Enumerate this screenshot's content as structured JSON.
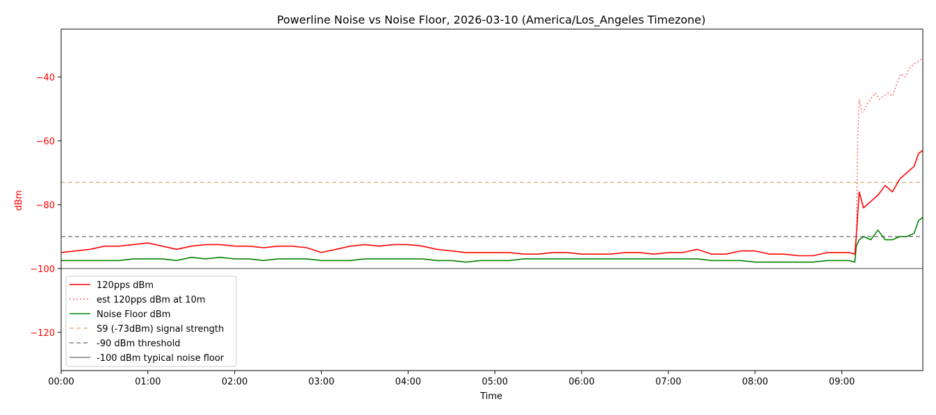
{
  "chart_data": {
    "type": "line",
    "title": "Powerline Noise vs Noise Floor, 2026-03-10 (America/Los_Angeles Timezone)",
    "xlabel": "Time",
    "ylabel": "dBm",
    "xlim": [
      "00:00",
      "09:56"
    ],
    "ylim": [
      -132,
      -25
    ],
    "x_ticks": [
      "00:00",
      "01:00",
      "02:00",
      "03:00",
      "04:00",
      "05:00",
      "06:00",
      "07:00",
      "08:00",
      "09:00"
    ],
    "y_ticks": [
      -40,
      -60,
      -80,
      -100,
      -120
    ],
    "y_tick_labels": [
      "−40",
      "−60",
      "−80",
      "−100",
      "−120"
    ],
    "grid": false,
    "legend_position": "lower-left",
    "ylabel_color": "#ff0000",
    "series": [
      {
        "name": "120pps dBm",
        "color": "#ff0000",
        "style": "solid",
        "x": [
          "00:00",
          "00:10",
          "00:20",
          "00:30",
          "00:40",
          "00:50",
          "01:00",
          "01:10",
          "01:20",
          "01:30",
          "01:40",
          "01:50",
          "02:00",
          "02:10",
          "02:20",
          "02:30",
          "02:40",
          "02:50",
          "03:00",
          "03:10",
          "03:20",
          "03:30",
          "03:40",
          "03:50",
          "04:00",
          "04:10",
          "04:20",
          "04:30",
          "04:40",
          "04:50",
          "05:00",
          "05:10",
          "05:20",
          "05:30",
          "05:40",
          "05:50",
          "06:00",
          "06:10",
          "06:20",
          "06:30",
          "06:40",
          "06:50",
          "07:00",
          "07:10",
          "07:20",
          "07:30",
          "07:40",
          "07:50",
          "08:00",
          "08:10",
          "08:20",
          "08:30",
          "08:40",
          "08:50",
          "09:00",
          "09:05",
          "09:09",
          "09:10",
          "09:12",
          "09:15",
          "09:20",
          "09:25",
          "09:30",
          "09:35",
          "09:40",
          "09:45",
          "09:50",
          "09:53",
          "09:56"
        ],
        "values": [
          -95,
          -94.5,
          -94,
          -93,
          -93,
          -92.5,
          -92,
          -93,
          -94,
          -93,
          -92.5,
          -92.5,
          -93,
          -93,
          -93.5,
          -93,
          -93,
          -93.5,
          -95,
          -94,
          -93,
          -92.5,
          -93,
          -92.5,
          -92.5,
          -93,
          -94,
          -94.5,
          -95,
          -95,
          -95,
          -95,
          -95.5,
          -95.5,
          -95,
          -95,
          -95.5,
          -95.5,
          -95.5,
          -95,
          -95,
          -95.5,
          -95,
          -95,
          -94,
          -95.5,
          -95.5,
          -94.5,
          -94.5,
          -95.5,
          -95.5,
          -96,
          -96,
          -95,
          -95,
          -95,
          -95.5,
          -90,
          -76,
          -81,
          -79,
          -77,
          -74,
          -76,
          -72,
          -70,
          -68,
          -64,
          -63
        ]
      },
      {
        "name": "est 120pps dBm at 10m",
        "color": "#ff6666",
        "style": "dotted",
        "x": [
          "09:00",
          "09:05",
          "09:09",
          "09:10",
          "09:11",
          "09:12",
          "09:14",
          "09:16",
          "09:18",
          "09:20",
          "09:23",
          "09:26",
          "09:29",
          "09:32",
          "09:35",
          "09:38",
          "09:41",
          "09:44",
          "09:47",
          "09:50",
          "09:53",
          "09:56"
        ],
        "values": [
          -95,
          -95,
          -95.5,
          -89,
          -60,
          -47,
          -51,
          -50,
          -48,
          -47,
          -45,
          -47,
          -46,
          -45,
          -46,
          -42,
          -39,
          -40,
          -37,
          -36,
          -35,
          -34
        ]
      },
      {
        "name": "Noise Floor dBm",
        "color": "#008000",
        "style": "solid",
        "x": [
          "00:00",
          "00:10",
          "00:20",
          "00:30",
          "00:40",
          "00:50",
          "01:00",
          "01:10",
          "01:20",
          "01:30",
          "01:40",
          "01:50",
          "02:00",
          "02:10",
          "02:20",
          "02:30",
          "02:40",
          "02:50",
          "03:00",
          "03:10",
          "03:20",
          "03:30",
          "03:40",
          "03:50",
          "04:00",
          "04:10",
          "04:20",
          "04:30",
          "04:40",
          "04:50",
          "05:00",
          "05:10",
          "05:20",
          "05:30",
          "05:40",
          "05:50",
          "06:00",
          "06:10",
          "06:20",
          "06:30",
          "06:40",
          "06:50",
          "07:00",
          "07:10",
          "07:20",
          "07:30",
          "07:40",
          "07:50",
          "08:00",
          "08:10",
          "08:20",
          "08:30",
          "08:40",
          "08:50",
          "09:00",
          "09:05",
          "09:09",
          "09:10",
          "09:12",
          "09:15",
          "09:20",
          "09:25",
          "09:30",
          "09:35",
          "09:40",
          "09:45",
          "09:50",
          "09:53",
          "09:56"
        ],
        "values": [
          -97.5,
          -97.5,
          -97.5,
          -97.5,
          -97.5,
          -97,
          -97,
          -97,
          -97.5,
          -96.5,
          -97,
          -96.5,
          -97,
          -97,
          -97.5,
          -97,
          -97,
          -97,
          -97.5,
          -97.5,
          -97.5,
          -97,
          -97,
          -97,
          -97,
          -97,
          -97.5,
          -97.5,
          -98,
          -97.5,
          -97.5,
          -97.5,
          -97,
          -97,
          -97,
          -97,
          -97,
          -97,
          -97,
          -97,
          -97,
          -97,
          -97,
          -97,
          -97,
          -97.5,
          -97.5,
          -97.5,
          -98,
          -98,
          -98,
          -98,
          -98,
          -97.5,
          -97.5,
          -97.5,
          -98,
          -93,
          -91,
          -90,
          -91,
          -88,
          -91,
          -91,
          -90,
          -90,
          -89,
          -85,
          -84
        ]
      },
      {
        "name": "S9 (-73dBm) signal strength",
        "color": "#deb887",
        "style": "dashed",
        "x": [
          "00:00",
          "09:56"
        ],
        "values": [
          -73,
          -73
        ]
      },
      {
        "name": "-90 dBm threshold",
        "color": "#808080",
        "style": "dashed",
        "x": [
          "00:00",
          "09:56"
        ],
        "values": [
          -90,
          -90
        ]
      },
      {
        "name": "-100 dBm typical noise floor",
        "color": "#808080",
        "style": "solid",
        "x": [
          "00:00",
          "09:56"
        ],
        "values": [
          -100,
          -100
        ]
      }
    ]
  }
}
